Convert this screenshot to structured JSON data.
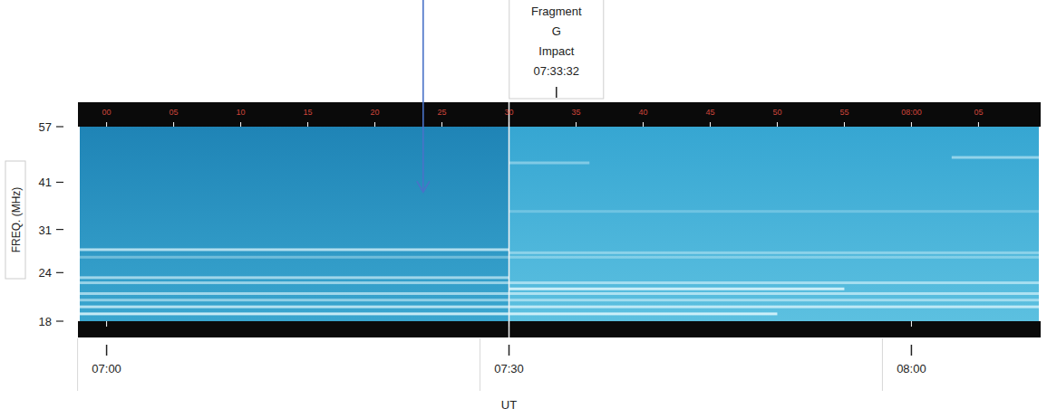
{
  "chart_data": {
    "type": "spectrogram",
    "x_label": "UT",
    "y_label": "FREQ. (MHz)",
    "log": "y",
    "xlim": [
      -2,
      69.5
    ],
    "ylim": [
      18,
      57
    ],
    "yticks": [
      18,
      24,
      31,
      41,
      57
    ],
    "xticks": [
      {
        "value": 0,
        "label": "07:00"
      },
      {
        "value": 30,
        "label": "07:30"
      },
      {
        "value": 60,
        "label": "08:00"
      }
    ],
    "top_ticks": [
      {
        "value": 0,
        "label": "00"
      },
      {
        "value": 5,
        "label": "05"
      },
      {
        "value": 10,
        "label": "10"
      },
      {
        "value": 15,
        "label": "15"
      },
      {
        "value": 20,
        "label": "20"
      },
      {
        "value": 25,
        "label": "25"
      },
      {
        "value": 30,
        "label": "30"
      },
      {
        "value": 35,
        "label": "35"
      },
      {
        "value": 40,
        "label": "40"
      },
      {
        "value": 45,
        "label": "45"
      },
      {
        "value": 50,
        "label": "50"
      },
      {
        "value": 55,
        "label": "55"
      },
      {
        "value": 60,
        "label": "08:00"
      },
      {
        "value": 65,
        "label": "05"
      }
    ],
    "panel_breaks": [
      30
    ],
    "bands": [
      {
        "freq": 27.5,
        "start": -2,
        "end": 30,
        "level": 0.7
      },
      {
        "freq": 27.0,
        "start": 30,
        "end": 69.5,
        "level": 0.4
      },
      {
        "freq": 26.3,
        "start": -2,
        "end": 69.5,
        "level": 0.35
      },
      {
        "freq": 23.3,
        "start": -2,
        "end": 30,
        "level": 0.6
      },
      {
        "freq": 22.6,
        "start": -2,
        "end": 69.5,
        "level": 0.55
      },
      {
        "freq": 21.8,
        "start": 30,
        "end": 55,
        "level": 0.8
      },
      {
        "freq": 21.2,
        "start": -2,
        "end": 69.5,
        "level": 0.6
      },
      {
        "freq": 20.4,
        "start": -2,
        "end": 69.5,
        "level": 0.5
      },
      {
        "freq": 19.6,
        "start": -2,
        "end": 69.5,
        "level": 0.7
      },
      {
        "freq": 18.8,
        "start": -2,
        "end": 50,
        "level": 0.8
      },
      {
        "freq": 46,
        "start": 30,
        "end": 36,
        "level": 0.4
      },
      {
        "freq": 47.5,
        "start": 63,
        "end": 69.5,
        "level": 0.5
      },
      {
        "freq": 34.5,
        "start": 30,
        "end": 69.5,
        "level": 0.25
      }
    ],
    "annotation": {
      "lines": [
        "Fragment",
        "G",
        "Impact",
        "07:33:32"
      ],
      "x": 33.533
    },
    "arrow": {
      "x": 23.6,
      "freq": 38.7
    }
  }
}
